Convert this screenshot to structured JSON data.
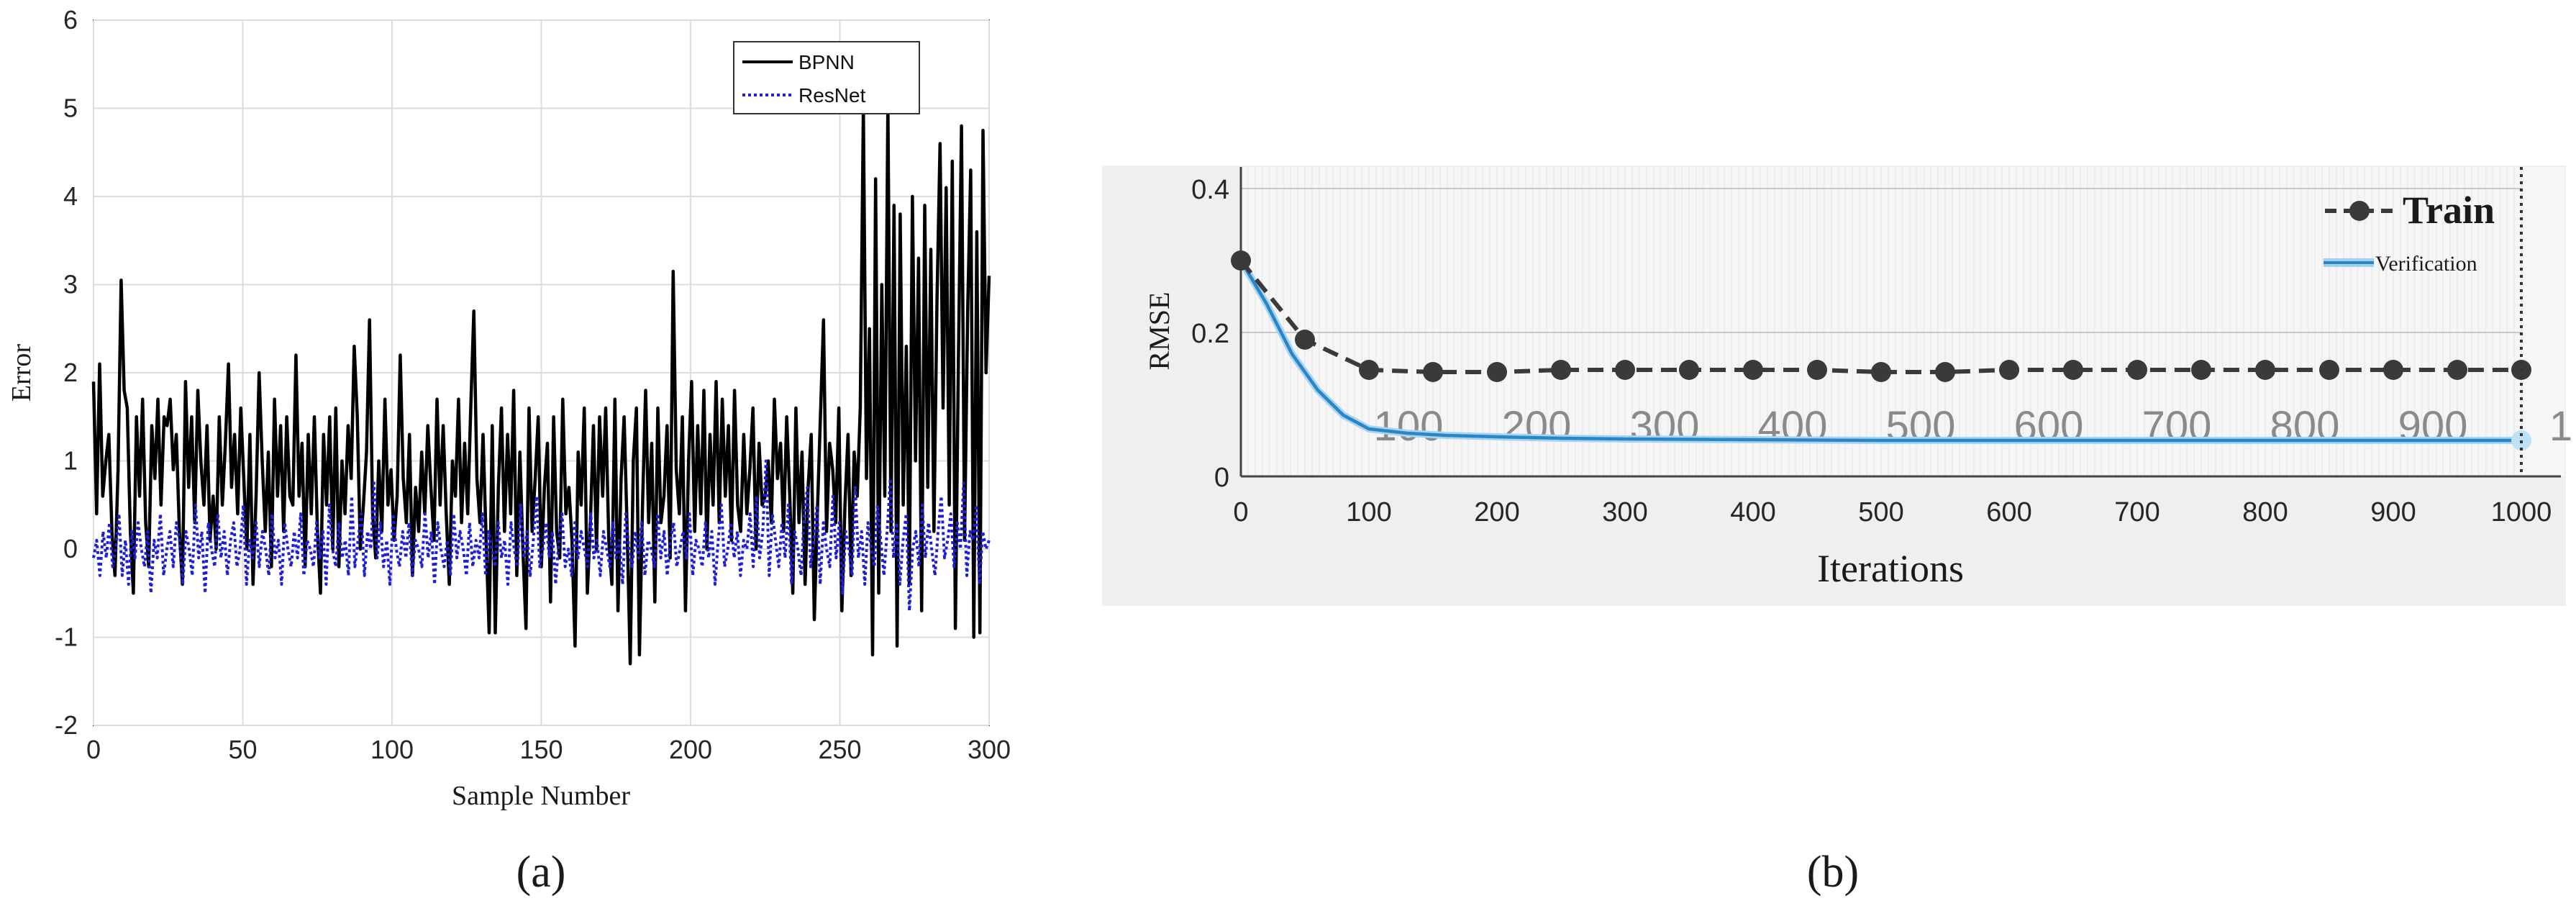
{
  "panels": {
    "a_label": "(a)",
    "b_label": "(b)"
  },
  "chart_data": [
    {
      "type": "line",
      "xlabel": "Sample Number",
      "ylabel": "Error",
      "xlim": [
        0,
        300
      ],
      "ylim": [
        -2,
        6
      ],
      "xticks": [
        0,
        50,
        100,
        150,
        200,
        250,
        300
      ],
      "yticks": [
        -2,
        -1,
        0,
        1,
        2,
        3,
        4,
        5,
        6
      ],
      "grid": true,
      "legend_position": "top-right",
      "series": [
        {
          "name": "BPNN",
          "color": "#000000",
          "style": "solid",
          "values": [
            1.9,
            0.4,
            2.1,
            0.6,
            1.0,
            1.3,
            0.2,
            -0.3,
            0.9,
            3.05,
            1.8,
            1.6,
            0.2,
            -0.5,
            1.5,
            0.6,
            1.7,
            0.3,
            -0.2,
            1.4,
            0.8,
            1.7,
            0.5,
            1.5,
            1.4,
            1.7,
            0.9,
            1.3,
            0.2,
            -0.4,
            1.9,
            0.7,
            1.5,
            0.3,
            1.8,
            1.0,
            0.5,
            1.4,
            0.1,
            0.6,
            0.0,
            1.5,
            0.5,
            1.2,
            2.1,
            0.7,
            1.3,
            0.4,
            1.6,
            0.8,
            0.0,
            1.3,
            -0.4,
            0.6,
            2.0,
            1.0,
            0.2,
            1.1,
            -0.2,
            1.7,
            0.6,
            1.4,
            0.2,
            1.5,
            0.6,
            0.5,
            2.2,
            0.6,
            1.2,
            -0.2,
            1.3,
            0.4,
            1.5,
            0.2,
            -0.5,
            1.3,
            0.5,
            1.5,
            0.0,
            1.6,
            -0.2,
            1.0,
            0.4,
            1.4,
            0.8,
            2.3,
            1.5,
            0.0,
            0.5,
            1.1,
            2.6,
            0.4,
            -0.1,
            1.0,
            0.2,
            1.7,
            0.5,
            0.9,
            0.1,
            0.6,
            2.2,
            0.8,
            0.3,
            1.3,
            -0.3,
            0.7,
            0.2,
            1.1,
            0.4,
            1.4,
            0.7,
            0.1,
            1.7,
            0.5,
            1.4,
            0.4,
            -0.4,
            1.0,
            0.6,
            1.7,
            0.3,
            1.2,
            0.4,
            1.6,
            2.7,
            0.8,
            0.3,
            1.3,
            0.1,
            -0.95,
            1.4,
            -0.95,
            0.7,
            1.6,
            0.2,
            1.3,
            0.4,
            1.8,
            -0.3,
            1.1,
            0.0,
            -0.9,
            1.6,
            0.2,
            0.8,
            1.5,
            -0.2,
            0.7,
            1.2,
            -0.6,
            1.5,
            0.2,
            -0.1,
            1.7,
            0.4,
            0.7,
            0.1,
            -1.1,
            1.1,
            0.5,
            1.6,
            -0.5,
            0.3,
            1.4,
            0.0,
            1.5,
            0.6,
            1.6,
            0.1,
            -0.4,
            1.7,
            -0.7,
            0.8,
            1.5,
            0.2,
            -1.3,
            1.0,
            1.6,
            -1.2,
            0.5,
            1.8,
            0.3,
            1.2,
            -0.6,
            1.6,
            0.3,
            0.6,
            1.4,
            -0.1,
            3.15,
            0.9,
            0.4,
            1.5,
            -0.7,
            1.0,
            1.9,
            0.2,
            1.4,
            0.4,
            1.8,
            0.0,
            1.3,
            0.5,
            1.9,
            0.3,
            1.7,
            0.6,
            1.4,
            0.1,
            1.8,
            0.5,
            0.2,
            1.3,
            0.4,
            0.9,
            1.6,
            0.0,
            1.2,
            0.5,
            0.6,
            1.0,
            0.3,
            1.7,
            0.8,
            1.2,
            0.2,
            1.5,
            0.6,
            -0.5,
            1.6,
            0.3,
            1.1,
            -0.4,
            0.7,
            1.3,
            -0.8,
            0.4,
            1.5,
            2.6,
            0.2,
            1.2,
            0.9,
            0.3,
            1.6,
            -0.7,
            0.5,
            1.3,
            -0.3,
            1.1,
            0.6,
            1.6,
            5.0,
            0.8,
            2.5,
            -1.2,
            4.2,
            -0.5,
            3.0,
            0.6,
            5.05,
            0.2,
            3.9,
            -1.1,
            3.8,
            0.5,
            2.3,
            -0.4,
            4.0,
            1.0,
            3.3,
            -0.7,
            3.9,
            0.7,
            3.4,
            0.2,
            2.8,
            4.6,
            1.6,
            4.1,
            0.5,
            4.4,
            -0.9,
            2.2,
            4.8,
            0.1,
            2.7,
            4.3,
            -1.0,
            3.6,
            -0.95,
            4.75,
            2.0,
            3.1
          ]
        },
        {
          "name": "ResNet",
          "color": "#1f1fd6",
          "style": "dotted",
          "values": [
            -0.1,
            0.1,
            -0.3,
            0.2,
            -0.1,
            0.3,
            -0.2,
            0.0,
            0.4,
            -0.3,
            0.1,
            -0.4,
            0.2,
            -0.1,
            0.3,
            0.0,
            -0.2,
            0.2,
            -0.5,
            0.1,
            -0.1,
            0.4,
            -0.3,
            0.0,
            0.2,
            -0.2,
            0.3,
            0.1,
            -0.4,
            0.2,
            0.0,
            -0.3,
            0.5,
            -0.1,
            0.2,
            -0.5,
            0.3,
            0.0,
            -0.2,
            0.4,
            -0.1,
            0.2,
            -0.3,
            0.1,
            0.3,
            -0.2,
            0.0,
            0.5,
            -0.4,
            0.1,
            -0.1,
            0.3,
            -0.2,
            0.2,
            0.0,
            -0.3,
            0.4,
            -0.1,
            0.1,
            -0.4,
            0.3,
            0.0,
            -0.2,
            0.2,
            -0.1,
            0.4,
            -0.3,
            0.1,
            0.0,
            -0.2,
            0.3,
            -0.1,
            0.2,
            -0.4,
            0.5,
            0.0,
            -0.2,
            0.3,
            -0.1,
            0.1,
            -0.3,
            0.6,
            -0.2,
            0.1,
            0.4,
            -0.3,
            0.2,
            0.0,
            0.75,
            -0.1,
            0.3,
            -0.2,
            0.1,
            -0.4,
            0.4,
            0.0,
            -0.2,
            0.2,
            -0.1,
            0.3,
            -0.3,
            0.1,
            0.0,
            -0.2,
            0.4,
            -0.1,
            0.2,
            -0.4,
            0.3,
            0.0,
            -0.2,
            0.1,
            -0.3,
            0.4,
            -0.1,
            0.2,
            0.0,
            -0.3,
            0.3,
            -0.2,
            0.1,
            -0.1,
            0.4,
            -0.3,
            0.2,
            0.0,
            -0.2,
            0.3,
            -0.1,
            0.1,
            -0.4,
            0.3,
            0.0,
            -0.2,
            0.5,
            -0.1,
            0.2,
            -0.3,
            0.1,
            0.6,
            -0.2,
            0.0,
            0.3,
            -0.1,
            0.2,
            -0.4,
            0.1,
            0.4,
            -0.2,
            0.0,
            -0.3,
            0.3,
            -0.1,
            0.2,
            0.0,
            -0.2,
            0.4,
            -0.1,
            0.1,
            -0.3,
            0.2,
            0.0,
            -0.2,
            0.3,
            -0.1,
            0.1,
            -0.4,
            0.4,
            0.0,
            -0.2,
            0.2,
            -0.1,
            0.3,
            -0.3,
            0.1,
            0.0,
            -0.2,
            0.4,
            -0.1,
            0.2,
            -0.3,
            0.1,
            0.3,
            -0.2,
            0.0,
            0.2,
            -0.1,
            0.4,
            -0.3,
            0.1,
            0.0,
            -0.2,
            0.3,
            -0.1,
            0.2,
            -0.4,
            0.1,
            0.5,
            -0.2,
            0.0,
            0.3,
            -0.1,
            0.2,
            -0.3,
            0.1,
            0.0,
            0.4,
            -0.2,
            0.6,
            -0.1,
            0.2,
            1.0,
            -0.3,
            0.4,
            0.1,
            -0.2,
            0.3,
            -0.1,
            0.5,
            -0.4,
            0.2,
            0.0,
            -0.3,
            0.4,
            0.7,
            -0.2,
            0.1,
            0.5,
            -0.4,
            0.3,
            0.0,
            -0.2,
            0.6,
            -0.1,
            0.3,
            -0.5,
            0.2,
            0.0,
            -0.3,
            0.7,
            -0.1,
            0.2,
            -0.4,
            0.3,
            0.0,
            -0.2,
            0.5,
            0.1,
            -0.3,
            0.2,
            0.8,
            -0.1,
            0.3,
            -0.4,
            0.1,
            0.4,
            -0.7,
            0.0,
            0.2,
            -0.2,
            0.5,
            -0.1,
            0.3,
            0.0,
            -0.3,
            0.2,
            0.6,
            -0.1,
            0.1,
            0.4,
            -0.2,
            0.3,
            0.0,
            0.75,
            -0.3,
            0.2,
            0.1,
            0.5,
            -0.4,
            0.2,
            0.0,
            0.1
          ]
        }
      ]
    },
    {
      "type": "line",
      "xlabel": "Iterations",
      "ylabel": "RMSE",
      "xlim": [
        0,
        1000
      ],
      "ylim": [
        0,
        0.43
      ],
      "xticks": [
        0,
        100,
        200,
        300,
        400,
        500,
        600,
        700,
        800,
        900,
        1000
      ],
      "yticks": [
        0,
        0.2,
        0.4
      ],
      "ytick_labels": [
        "0",
        "0.2",
        "0.4"
      ],
      "grid": true,
      "legend_position": "top-right",
      "ghost_tick_labels": [
        "100",
        "200",
        "300",
        "400",
        "500",
        "600",
        "700",
        "800",
        "900",
        "1"
      ],
      "series": [
        {
          "name": "Train",
          "color": "#3a3a3a",
          "style": "dashed-markers",
          "x": [
            0,
            50,
            100,
            150,
            200,
            250,
            300,
            350,
            400,
            450,
            500,
            550,
            600,
            650,
            700,
            750,
            800,
            850,
            900,
            950,
            1000
          ],
          "values": [
            0.3,
            0.19,
            0.148,
            0.145,
            0.145,
            0.148,
            0.148,
            0.148,
            0.148,
            0.148,
            0.145,
            0.145,
            0.148,
            0.148,
            0.148,
            0.148,
            0.148,
            0.148,
            0.148,
            0.148,
            0.148
          ]
        },
        {
          "name": "Verification",
          "color": "#2a86c4",
          "style": "solid",
          "x": [
            0,
            20,
            40,
            60,
            80,
            100,
            130,
            160,
            200,
            250,
            300,
            400,
            500,
            600,
            700,
            800,
            900,
            1000
          ],
          "values": [
            0.3,
            0.24,
            0.17,
            0.12,
            0.085,
            0.066,
            0.06,
            0.057,
            0.055,
            0.053,
            0.052,
            0.051,
            0.05,
            0.05,
            0.05,
            0.05,
            0.05,
            0.05
          ]
        }
      ]
    }
  ]
}
